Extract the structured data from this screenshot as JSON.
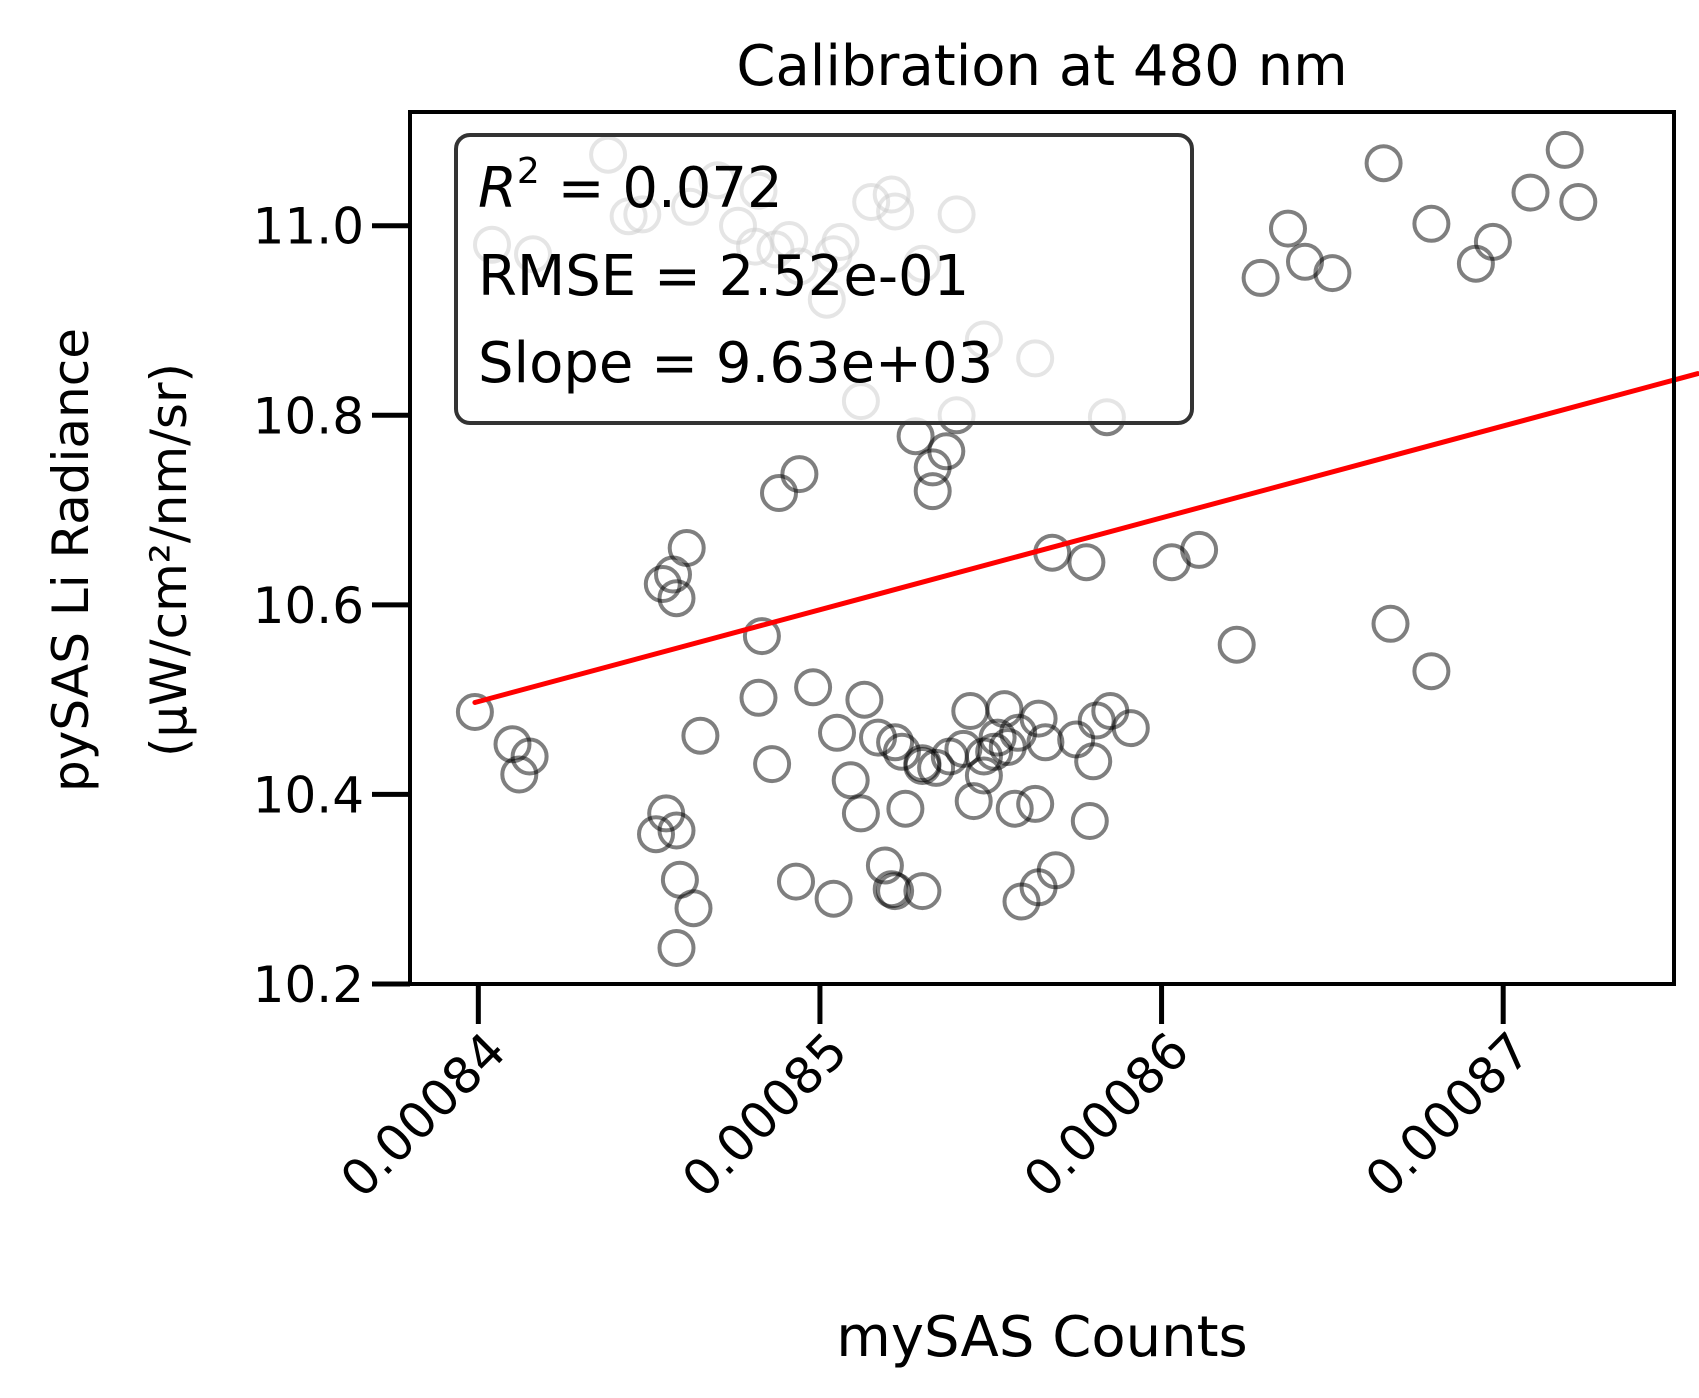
{
  "chart_data": {
    "type": "scatter",
    "title": "Calibration at 480 nm",
    "xlabel": "mySAS Counts",
    "ylabel_line1": "pySAS Li Radiance",
    "ylabel_line2": "(µW/cm²/nm/sr)",
    "xlim": [
      0.000838,
      0.000875
    ],
    "ylim": [
      10.2,
      11.12
    ],
    "x_ticks": [
      0.00084,
      0.00085,
      0.00086,
      0.00087
    ],
    "x_tick_labels": [
      "0.00084",
      "0.00085",
      "0.00086",
      "0.00087"
    ],
    "y_ticks": [
      10.2,
      10.4,
      10.6,
      10.8,
      11.0
    ],
    "y_tick_labels": [
      "10.2",
      "10.4",
      "10.6",
      "10.8",
      "11.0"
    ],
    "grid": false,
    "stats": {
      "r2_label": "R",
      "r2_sup": "2",
      "r2_value": " = 0.072",
      "rmse": "RMSE = 2.52e-01",
      "slope": "Slope = 9.63e+03"
    },
    "fit_line": {
      "x": [
        0.0008399,
        0.0008757
      ],
      "y": [
        10.497,
        10.844
      ],
      "color": "#ff0000"
    },
    "marker_color": "#000000",
    "points": [
      [
        0.0008399,
        10.487
      ],
      [
        0.000841,
        10.453
      ],
      [
        0.0008412,
        10.421
      ],
      [
        0.0008415,
        10.44
      ],
      [
        0.0008404,
        10.98
      ],
      [
        0.0008416,
        10.97
      ],
      [
        0.0008438,
        11.075
      ],
      [
        0.0008444,
        11.01
      ],
      [
        0.0008448,
        11.012
      ],
      [
        0.0008462,
        11.02
      ],
      [
        0.000847,
        11.048
      ],
      [
        0.0008476,
        11.0
      ],
      [
        0.0008481,
        10.978
      ],
      [
        0.0008482,
        11.037
      ],
      [
        0.0008487,
        10.975
      ],
      [
        0.0008491,
        10.985
      ],
      [
        0.0008494,
        10.957
      ],
      [
        0.0008502,
        10.922
      ],
      [
        0.0008504,
        10.97
      ],
      [
        0.0008506,
        10.983
      ],
      [
        0.0008515,
        11.025
      ],
      [
        0.0008521,
        11.033
      ],
      [
        0.0008522,
        11.015
      ],
      [
        0.000853,
        10.96
      ],
      [
        0.000854,
        11.012
      ],
      [
        0.0008512,
        10.815
      ],
      [
        0.0008528,
        10.778
      ],
      [
        0.0008533,
        10.745
      ],
      [
        0.0008533,
        10.72
      ],
      [
        0.0008537,
        10.762
      ],
      [
        0.000854,
        10.8
      ],
      [
        0.0008548,
        10.88
      ],
      [
        0.0008563,
        10.86
      ],
      [
        0.0008584,
        10.798
      ],
      [
        0.0008454,
        10.622
      ],
      [
        0.0008457,
        10.632
      ],
      [
        0.0008458,
        10.607
      ],
      [
        0.0008461,
        10.66
      ],
      [
        0.0008488,
        10.718
      ],
      [
        0.0008494,
        10.738
      ],
      [
        0.0008483,
        10.567
      ],
      [
        0.0008482,
        10.502
      ],
      [
        0.0008498,
        10.513
      ],
      [
        0.0008465,
        10.462
      ],
      [
        0.0008486,
        10.432
      ],
      [
        0.0008513,
        10.5
      ],
      [
        0.0008505,
        10.465
      ],
      [
        0.0008517,
        10.46
      ],
      [
        0.0008509,
        10.415
      ],
      [
        0.0008512,
        10.38
      ],
      [
        0.0008522,
        10.455
      ],
      [
        0.0008524,
        10.445
      ],
      [
        0.000853,
        10.433
      ],
      [
        0.0008525,
        10.385
      ],
      [
        0.000853,
        10.43
      ],
      [
        0.0008534,
        10.428
      ],
      [
        0.0008538,
        10.44
      ],
      [
        0.0008542,
        10.448
      ],
      [
        0.0008544,
        10.488
      ],
      [
        0.0008545,
        10.393
      ],
      [
        0.0008548,
        10.42
      ],
      [
        0.0008548,
        10.44
      ],
      [
        0.0008551,
        10.445
      ],
      [
        0.0008552,
        10.46
      ],
      [
        0.0008554,
        10.49
      ],
      [
        0.0008555,
        10.45
      ],
      [
        0.0008557,
        10.385
      ],
      [
        0.0008558,
        10.465
      ],
      [
        0.0008563,
        10.39
      ],
      [
        0.0008564,
        10.48
      ],
      [
        0.0008566,
        10.455
      ],
      [
        0.0008575,
        10.458
      ],
      [
        0.0008579,
        10.372
      ],
      [
        0.000858,
        10.435
      ],
      [
        0.0008581,
        10.478
      ],
      [
        0.0008585,
        10.488
      ],
      [
        0.0008591,
        10.47
      ],
      [
        0.0008452,
        10.358
      ],
      [
        0.0008455,
        10.38
      ],
      [
        0.0008458,
        10.362
      ],
      [
        0.0008459,
        10.31
      ],
      [
        0.0008463,
        10.28
      ],
      [
        0.0008458,
        10.238
      ],
      [
        0.0008493,
        10.308
      ],
      [
        0.0008504,
        10.29
      ],
      [
        0.0008519,
        10.325
      ],
      [
        0.0008521,
        10.3
      ],
      [
        0.0008522,
        10.298
      ],
      [
        0.000853,
        10.298
      ],
      [
        0.0008559,
        10.287
      ],
      [
        0.0008564,
        10.302
      ],
      [
        0.0008569,
        10.32
      ],
      [
        0.0008568,
        10.655
      ],
      [
        0.0008578,
        10.645
      ],
      [
        0.0008603,
        10.645
      ],
      [
        0.0008611,
        10.658
      ],
      [
        0.0008622,
        10.558
      ],
      [
        0.0008629,
        10.945
      ],
      [
        0.0008637,
        10.997
      ],
      [
        0.0008642,
        10.962
      ],
      [
        0.000865,
        10.95
      ],
      [
        0.0008665,
        11.066
      ],
      [
        0.0008667,
        10.58
      ],
      [
        0.0008679,
        10.53
      ],
      [
        0.0008679,
        11.002
      ],
      [
        0.0008692,
        10.96
      ],
      [
        0.0008697,
        10.983
      ],
      [
        0.0008708,
        11.035
      ],
      [
        0.0008718,
        11.08
      ],
      [
        0.0008722,
        11.025
      ]
    ]
  }
}
